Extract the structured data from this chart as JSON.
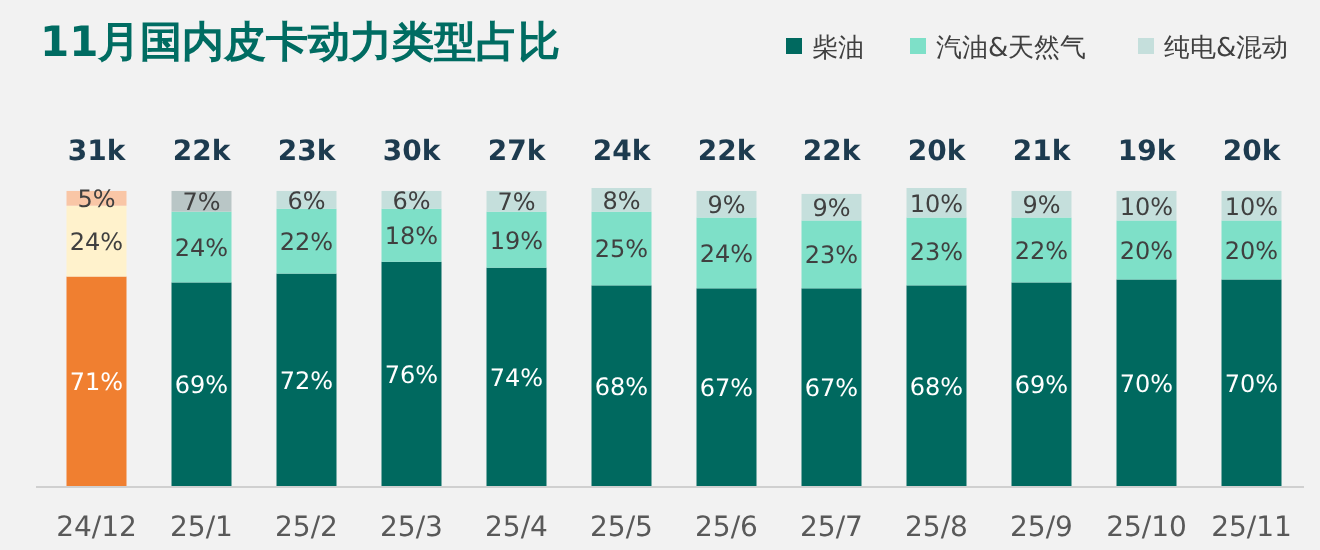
{
  "chart_data": {
    "type": "bar",
    "stacked": true,
    "title": "11月国内皮卡动力类型占比",
    "legend": "top right",
    "categories": [
      "24/12",
      "25/1",
      "25/2",
      "25/3",
      "25/4",
      "25/5",
      "25/6",
      "25/7",
      "25/8",
      "25/9",
      "25/10",
      "25/11"
    ],
    "series": [
      {
        "name": "柴油",
        "color": "#00695f",
        "colors": [
          "#f07f30",
          "#00695f",
          "#00695f",
          "#00695f",
          "#00695f",
          "#00695f",
          "#00695f",
          "#00695f",
          "#00695f",
          "#00695f",
          "#00695f",
          "#00695f"
        ],
        "values": [
          71,
          69,
          72,
          76,
          74,
          68,
          67,
          67,
          68,
          69,
          70,
          70
        ],
        "value_labels": [
          "71%",
          "69%",
          "72%",
          "76%",
          "74%",
          "68%",
          "67%",
          "67%",
          "68%",
          "69%",
          "70%",
          "70%"
        ]
      },
      {
        "name": "汽油&天然气",
        "color": "#7ee0c8",
        "colors": [
          "#fff2cc",
          "#7ee0c8",
          "#7ee0c8",
          "#7ee0c8",
          "#7ee0c8",
          "#7ee0c8",
          "#7ee0c8",
          "#7ee0c8",
          "#7ee0c8",
          "#7ee0c8",
          "#7ee0c8",
          "#7ee0c8"
        ],
        "values": [
          24,
          24,
          22,
          18,
          19,
          25,
          24,
          23,
          23,
          22,
          20,
          20
        ],
        "value_labels": [
          "24%",
          "24%",
          "22%",
          "18%",
          "19%",
          "25%",
          "24%",
          "23%",
          "23%",
          "22%",
          "20%",
          "20%"
        ]
      },
      {
        "name": "纯电&混动",
        "color": "#c5dfdc",
        "colors": [
          "#f9c6a6",
          "#b9c6c6",
          "#c5dfdc",
          "#c5dfdc",
          "#c5dfdc",
          "#c5dfdc",
          "#c5dfdc",
          "#c5dfdc",
          "#c5dfdc",
          "#c5dfdc",
          "#c5dfdc",
          "#c5dfdc"
        ],
        "values": [
          5,
          7,
          6,
          6,
          7,
          8,
          9,
          9,
          10,
          9,
          10,
          10
        ],
        "value_labels": [
          "5%",
          "7%",
          "6%",
          "6%",
          "7%",
          "8%",
          "9%",
          "9%",
          "10%",
          "9%",
          "10%",
          "10%"
        ]
      }
    ],
    "annotations": [
      "31k",
      "22k",
      "23k",
      "30k",
      "27k",
      "24k",
      "22k",
      "22k",
      "20k",
      "21k",
      "19k",
      "20k"
    ]
  }
}
